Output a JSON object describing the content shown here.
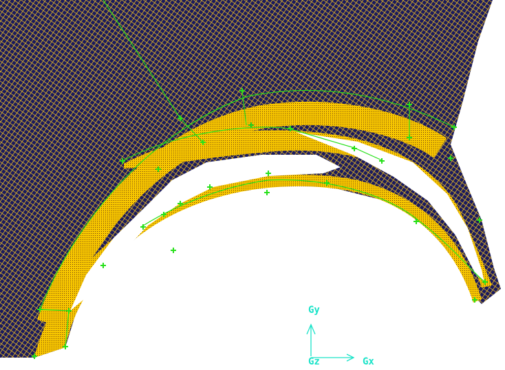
{
  "axes": {
    "y": "Gy",
    "z": "Gz",
    "x": "Gx"
  }
}
